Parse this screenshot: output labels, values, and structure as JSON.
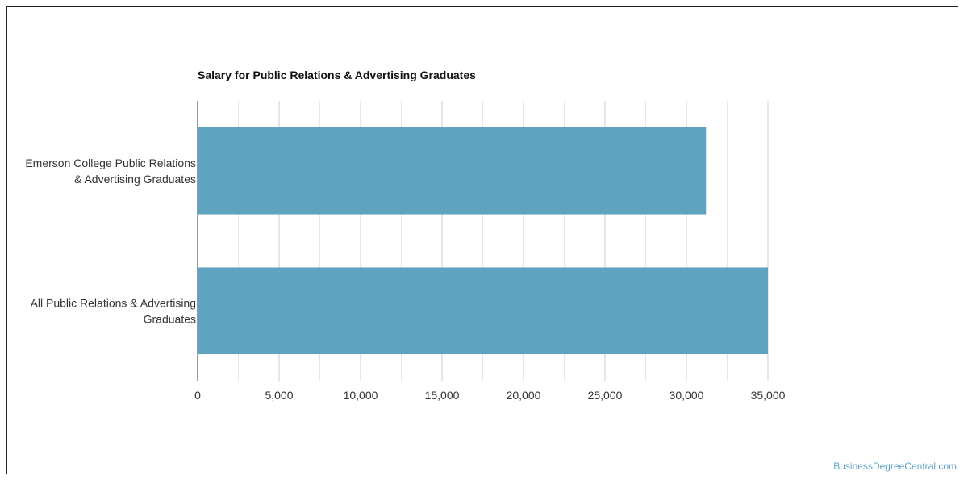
{
  "chart_data": {
    "type": "bar",
    "orientation": "horizontal",
    "title": "Salary for Public Relations & Advertising Graduates",
    "categories": [
      [
        "Emerson College Public Relations",
        "& Advertising Graduates"
      ],
      [
        "All Public Relations & Advertising",
        "Graduates"
      ]
    ],
    "values": [
      31200,
      35000
    ],
    "xlim": [
      0,
      35000
    ],
    "xticks": [
      0,
      5000,
      10000,
      15000,
      20000,
      25000,
      30000,
      35000
    ],
    "xtick_labels": [
      "0",
      "5,000",
      "10,000",
      "15,000",
      "20,000",
      "25,000",
      "30,000",
      "35,000"
    ],
    "xlabel": "",
    "ylabel": "",
    "grid": true,
    "bar_color": "#5ea3c0",
    "grid_color": "#cccccc",
    "minor_grid_color": "#e6e6e6",
    "axis_color": "#333333",
    "legend": "none"
  },
  "footer": {
    "credit": "BusinessDegreeCentral.com"
  }
}
